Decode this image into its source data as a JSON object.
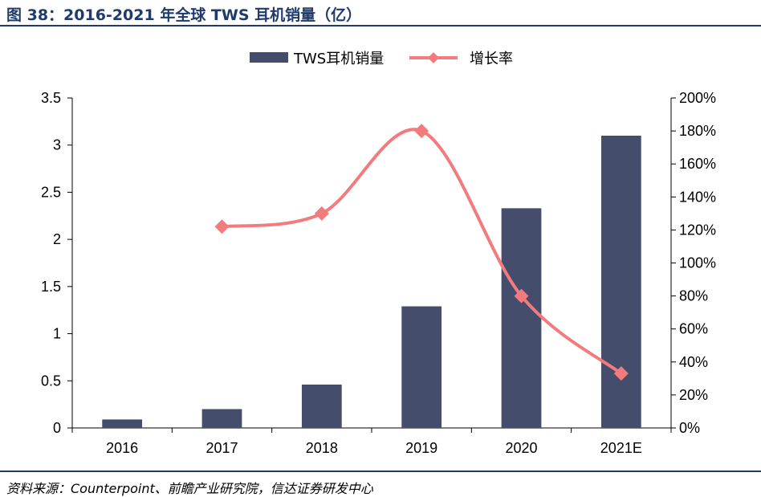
{
  "header": {
    "title": "图 38：2016-2021 年全球 TWS 耳机销量（亿）"
  },
  "footer": {
    "source": "资料来源：Counterpoint、前瞻产业研究院，信达证券研发中心"
  },
  "colors": {
    "bar": "#454d6d",
    "line": "#f27b7d",
    "rule": "#1f3a6d"
  },
  "chart_data": {
    "type": "bar",
    "categories": [
      "2016",
      "2017",
      "2018",
      "2019",
      "2020",
      "2021E"
    ],
    "series": [
      {
        "name": "TWS耳机销量",
        "type": "bar",
        "axis": "left",
        "values": [
          0.09,
          0.2,
          0.46,
          1.29,
          2.33,
          3.1
        ]
      },
      {
        "name": "增长率",
        "type": "line",
        "axis": "right",
        "smooth": true,
        "marker": "diamond",
        "values": [
          null,
          1.22,
          1.3,
          1.8,
          0.8,
          0.33
        ]
      }
    ],
    "y_left": {
      "range": [
        0,
        3.5
      ],
      "ticks": [
        "0",
        "0.5",
        "1",
        "1.5",
        "2",
        "2.5",
        "3",
        "3.5"
      ]
    },
    "y_right": {
      "range": [
        0,
        2.0
      ],
      "ticks": [
        "0%",
        "20%",
        "40%",
        "60%",
        "80%",
        "100%",
        "120%",
        "140%",
        "160%",
        "180%",
        "200%"
      ]
    },
    "grid": false,
    "legend": "top-center"
  }
}
